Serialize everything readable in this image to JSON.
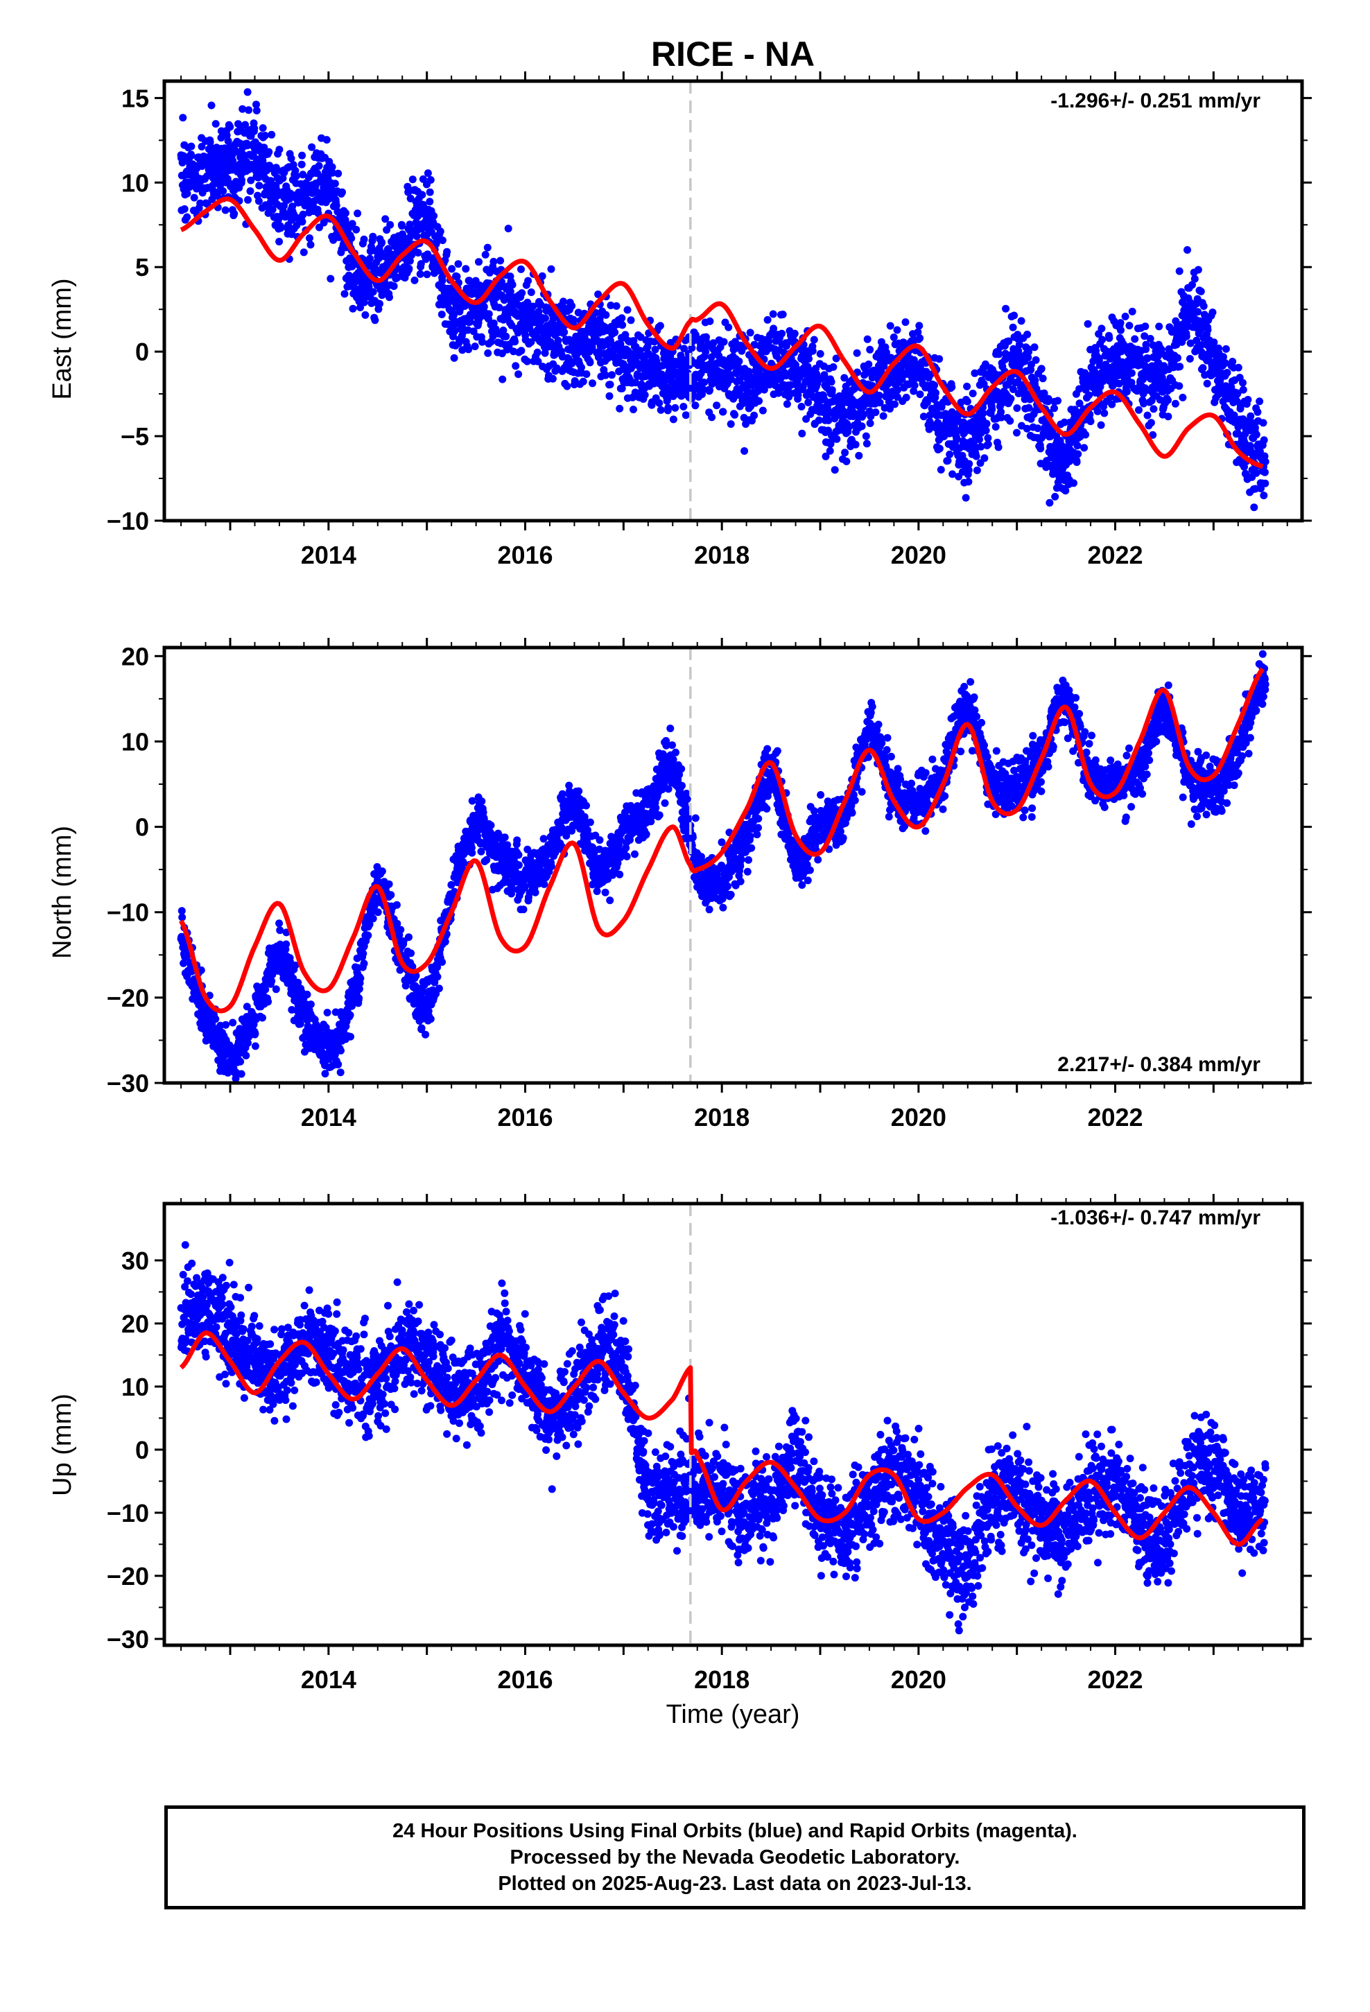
{
  "title": "RICE - NA",
  "xlabel": "Time (year)",
  "footer": {
    "line1": "24 Hour Positions Using Final Orbits (blue) and Rapid Orbits (magenta).",
    "line2": "Processed by the Nevada Geodetic Laboratory.",
    "line3": "Plotted on 2025-Aug-23. Last data on 2023-Jul-13."
  },
  "colors": {
    "data_points": "#0000ff",
    "model_fit": "#ff0000",
    "event_line": "#c8c8c8",
    "frame": "#000000"
  },
  "chart_data": [
    {
      "type": "scatter",
      "component": "East",
      "ylabel": "East (mm)",
      "rate_text": "-1.296+/- 0.251 mm/yr",
      "xlim": [
        2012.33,
        2023.9
      ],
      "ylim": [
        -10,
        16
      ],
      "xticks": [
        2014,
        2016,
        2018,
        2020,
        2022
      ],
      "yticks": [
        -10,
        -5,
        0,
        5,
        10,
        15
      ],
      "event_year": 2017.68,
      "first_data_year": 2012.5,
      "last_data_year": 2023.53,
      "series": [
        {
          "kind": "observed",
          "style": "blue-dots",
          "x": [
            2012.5,
            2012.75,
            2013.0,
            2013.25,
            2013.5,
            2013.75,
            2014.0,
            2014.25,
            2014.5,
            2014.75,
            2015.0,
            2015.25,
            2015.5,
            2015.75,
            2016.0,
            2016.25,
            2016.5,
            2016.75,
            2017.0,
            2017.25,
            2017.5,
            2017.75,
            2018.0,
            2018.25,
            2018.5,
            2018.75,
            2019.0,
            2019.25,
            2019.5,
            2019.75,
            2020.0,
            2020.25,
            2020.5,
            2020.75,
            2021.0,
            2021.25,
            2021.5,
            2021.75,
            2022.0,
            2022.25,
            2022.5,
            2022.75,
            2023.0,
            2023.25,
            2023.5
          ],
          "y": [
            10.2,
            10.5,
            11.0,
            11.8,
            9.2,
            9.0,
            9.5,
            5.0,
            4.5,
            6.0,
            8.0,
            2.5,
            3.0,
            2.8,
            1.5,
            1.0,
            0.5,
            0.8,
            -0.5,
            -1.0,
            -1.2,
            -1.0,
            -0.8,
            -2.0,
            -0.5,
            -1.0,
            -2.5,
            -4.0,
            -2.0,
            -1.0,
            -1.0,
            -4.0,
            -5.0,
            -2.5,
            -1.0,
            -3.5,
            -6.0,
            -2.0,
            -1.0,
            -1.0,
            -1.5,
            2.0,
            -0.5,
            -4.0,
            -6.5
          ],
          "spread": [
            1.3,
            1.3,
            1.5,
            1.5,
            1.2,
            1.2,
            1.3,
            1.2,
            1.2,
            1.3,
            1.4,
            1.3,
            1.3,
            1.3,
            1.3,
            1.3,
            1.2,
            1.2,
            1.3,
            1.2,
            1.2,
            1.2,
            1.2,
            1.3,
            1.2,
            1.3,
            1.3,
            1.3,
            1.3,
            1.2,
            1.2,
            1.3,
            1.4,
            1.3,
            1.3,
            1.4,
            1.3,
            1.3,
            1.3,
            1.3,
            1.3,
            1.4,
            1.3,
            1.4,
            1.3
          ]
        },
        {
          "kind": "model",
          "style": "red-line",
          "x": [
            2012.5,
            2012.75,
            2013.0,
            2013.25,
            2013.5,
            2013.75,
            2014.0,
            2014.25,
            2014.5,
            2014.75,
            2015.0,
            2015.25,
            2015.5,
            2015.75,
            2016.0,
            2016.25,
            2016.5,
            2016.75,
            2017.0,
            2017.25,
            2017.5,
            2017.68,
            2017.75,
            2018.0,
            2018.25,
            2018.5,
            2018.75,
            2019.0,
            2019.25,
            2019.5,
            2019.75,
            2020.0,
            2020.25,
            2020.5,
            2020.75,
            2021.0,
            2021.25,
            2021.5,
            2021.75,
            2022.0,
            2022.25,
            2022.5,
            2022.75,
            2023.0,
            2023.25,
            2023.5
          ],
          "y": [
            7.2,
            8.3,
            9.0,
            7.2,
            5.4,
            7.0,
            8.0,
            5.9,
            4.2,
            5.7,
            6.5,
            4.2,
            2.9,
            4.5,
            5.3,
            3.0,
            1.4,
            3.0,
            4.0,
            1.6,
            0.2,
            1.8,
            1.9,
            2.8,
            0.5,
            -1.0,
            0.3,
            1.5,
            -0.6,
            -2.4,
            -0.7,
            0.3,
            -2.1,
            -3.7,
            -2.1,
            -1.2,
            -3.3,
            -4.9,
            -3.3,
            -2.4,
            -4.3,
            -6.2,
            -4.5,
            -3.8,
            -5.9,
            -6.8
          ]
        }
      ]
    },
    {
      "type": "scatter",
      "component": "North",
      "ylabel": "North (mm)",
      "rate_text": "2.217+/- 0.384 mm/yr",
      "xlim": [
        2012.33,
        2023.9
      ],
      "ylim": [
        -30,
        21
      ],
      "xticks": [
        2014,
        2016,
        2018,
        2020,
        2022
      ],
      "yticks": [
        -30,
        -20,
        -10,
        0,
        10,
        20
      ],
      "event_year": 2017.68,
      "first_data_year": 2012.5,
      "last_data_year": 2023.53,
      "series": [
        {
          "kind": "observed",
          "style": "blue-dots",
          "x": [
            2012.5,
            2012.75,
            2013.0,
            2013.25,
            2013.5,
            2013.75,
            2014.0,
            2014.25,
            2014.5,
            2014.75,
            2015.0,
            2015.25,
            2015.5,
            2015.75,
            2016.0,
            2016.25,
            2016.5,
            2016.75,
            2017.0,
            2017.25,
            2017.5,
            2017.75,
            2018.0,
            2018.25,
            2018.5,
            2018.75,
            2019.0,
            2019.25,
            2019.5,
            2019.75,
            2020.0,
            2020.25,
            2020.5,
            2020.75,
            2021.0,
            2021.25,
            2021.5,
            2021.75,
            2022.0,
            2022.25,
            2022.5,
            2022.75,
            2023.0,
            2023.25,
            2023.5
          ],
          "y": [
            -13,
            -22,
            -27,
            -22,
            -15,
            -22,
            -26,
            -20,
            -7,
            -15,
            -21,
            -8,
            0,
            -4,
            -6,
            -3,
            3,
            -5,
            -1,
            2,
            7,
            -5,
            -6,
            -1,
            6,
            -4,
            0,
            1,
            11,
            4,
            3,
            6,
            14,
            5,
            5,
            8,
            15,
            6,
            5,
            7,
            14,
            6,
            5,
            9,
            17
          ],
          "spread": [
            1.5,
            1.5,
            1.5,
            1.5,
            1.5,
            1.5,
            1.5,
            1.5,
            1.5,
            1.5,
            1.5,
            1.5,
            1.5,
            1.5,
            1.5,
            1.5,
            1.5,
            1.5,
            1.5,
            1.5,
            1.5,
            1.5,
            1.5,
            1.5,
            1.5,
            1.5,
            1.5,
            1.5,
            1.5,
            1.5,
            1.5,
            1.5,
            1.5,
            1.5,
            1.5,
            1.5,
            1.5,
            1.5,
            1.5,
            1.5,
            1.5,
            1.5,
            1.5,
            1.5,
            1.5
          ]
        },
        {
          "kind": "model",
          "style": "red-line",
          "x": [
            2012.5,
            2012.75,
            2013.0,
            2013.25,
            2013.5,
            2013.75,
            2014.0,
            2014.25,
            2014.5,
            2014.75,
            2015.0,
            2015.25,
            2015.5,
            2015.75,
            2016.0,
            2016.25,
            2016.5,
            2016.75,
            2017.0,
            2017.25,
            2017.5,
            2017.68,
            2017.75,
            2018.0,
            2018.25,
            2018.5,
            2018.75,
            2019.0,
            2019.25,
            2019.5,
            2019.75,
            2020.0,
            2020.25,
            2020.5,
            2020.75,
            2021.0,
            2021.25,
            2021.5,
            2021.75,
            2022.0,
            2022.25,
            2022.5,
            2022.75,
            2023.0,
            2023.25,
            2023.5
          ],
          "y": [
            -11,
            -20,
            -21,
            -14,
            -9,
            -17,
            -19,
            -13,
            -7,
            -16,
            -16,
            -10,
            -4,
            -13,
            -14,
            -7,
            -2,
            -12,
            -11,
            -5,
            0,
            -4.5,
            -5,
            -3,
            2,
            7.5,
            -1,
            -3,
            3,
            9,
            3,
            0,
            5,
            12,
            3,
            2,
            8,
            14,
            5,
            4,
            10,
            16,
            7,
            6,
            12,
            18.5
          ]
        }
      ]
    },
    {
      "type": "scatter",
      "component": "Up",
      "ylabel": "Up (mm)",
      "rate_text": "-1.036+/- 0.747 mm/yr",
      "xlim": [
        2012.33,
        2023.9
      ],
      "ylim": [
        -31,
        39
      ],
      "xticks": [
        2014,
        2016,
        2018,
        2020,
        2022
      ],
      "yticks": [
        -30,
        -20,
        -10,
        0,
        10,
        20,
        30
      ],
      "event_year": 2017.68,
      "first_data_year": 2012.5,
      "last_data_year": 2023.53,
      "series": [
        {
          "kind": "observed",
          "style": "blue-dots",
          "x": [
            2012.5,
            2012.75,
            2013.0,
            2013.25,
            2013.5,
            2013.75,
            2014.0,
            2014.25,
            2014.5,
            2014.75,
            2015.0,
            2015.25,
            2015.5,
            2015.75,
            2016.0,
            2016.25,
            2016.5,
            2016.75,
            2017.0,
            2017.25,
            2017.5,
            2017.75,
            2018.0,
            2018.25,
            2018.5,
            2018.75,
            2019.0,
            2019.25,
            2019.5,
            2019.75,
            2020.0,
            2020.25,
            2020.5,
            2020.75,
            2021.0,
            2021.25,
            2021.5,
            2021.75,
            2022.0,
            2022.25,
            2022.5,
            2022.75,
            2023.0,
            2023.25,
            2023.5
          ],
          "y": [
            21,
            22,
            19,
            14,
            12,
            17,
            15,
            12,
            11,
            16,
            15,
            10,
            9,
            17,
            12,
            5,
            9,
            15,
            13,
            -6,
            -7,
            -6,
            -8,
            -10,
            -8,
            -2,
            -10,
            -13,
            -8,
            -4,
            -8,
            -15,
            -18,
            -8,
            -6,
            -12,
            -13,
            -7,
            -6,
            -12,
            -14,
            -4,
            -2,
            -10,
            -8
          ],
          "spread": [
            3.5,
            3.5,
            3.8,
            3.5,
            3.5,
            3.5,
            3.5,
            3.5,
            3.5,
            3.5,
            3.5,
            3.5,
            3.5,
            3.8,
            3.5,
            3.5,
            3.5,
            3.5,
            3.5,
            3.5,
            3.5,
            3.8,
            3.8,
            3.8,
            3.8,
            3.8,
            3.8,
            3.8,
            3.8,
            3.8,
            3.8,
            4.0,
            4.0,
            3.8,
            3.8,
            3.8,
            3.8,
            3.8,
            3.8,
            3.8,
            3.8,
            3.8,
            4.0,
            4.0,
            4.0
          ]
        },
        {
          "kind": "model",
          "style": "red-line",
          "x": [
            2012.5,
            2012.75,
            2013.0,
            2013.25,
            2013.5,
            2013.75,
            2014.0,
            2014.25,
            2014.5,
            2014.75,
            2015.0,
            2015.25,
            2015.5,
            2015.75,
            2016.0,
            2016.25,
            2016.5,
            2016.75,
            2017.0,
            2017.25,
            2017.5,
            2017.68,
            2017.69,
            2017.75,
            2018.0,
            2018.25,
            2018.5,
            2018.75,
            2019.0,
            2019.25,
            2019.5,
            2019.75,
            2020.0,
            2020.25,
            2020.5,
            2020.75,
            2021.0,
            2021.25,
            2021.5,
            2021.75,
            2022.0,
            2022.25,
            2022.5,
            2022.75,
            2023.0,
            2023.25,
            2023.5
          ],
          "y": [
            13,
            18.5,
            14,
            9,
            14,
            17,
            12,
            8,
            12,
            16,
            11,
            7,
            11,
            15,
            10,
            6,
            10,
            14,
            9,
            5,
            8,
            13,
            -0.5,
            -1,
            -9.5,
            -5,
            -2,
            -6,
            -11,
            -10,
            -4,
            -4,
            -11,
            -10,
            -6,
            -4,
            -9,
            -12,
            -8,
            -5,
            -10,
            -14,
            -10,
            -6,
            -10,
            -15,
            -11
          ]
        }
      ]
    }
  ]
}
